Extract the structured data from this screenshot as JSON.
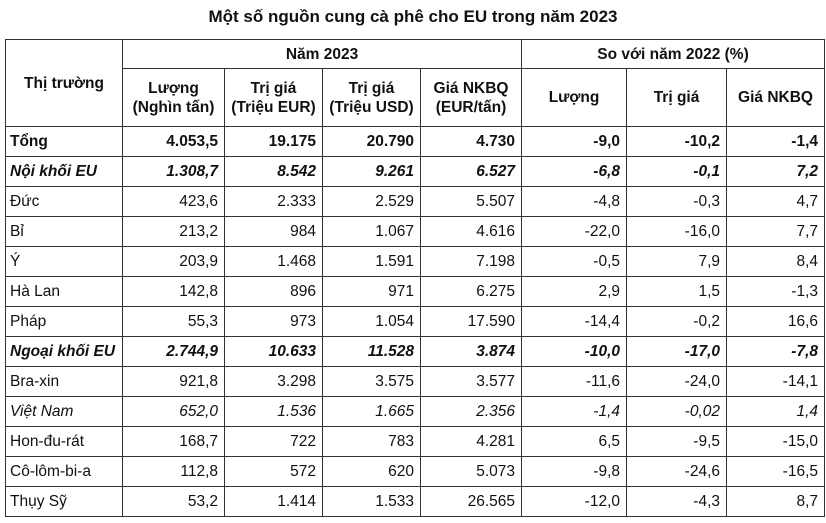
{
  "title": "Một số nguồn cung cà phê cho EU trong năm 2023",
  "header": {
    "market": "Thị trường",
    "group_2023": "Năm 2023",
    "group_vs2022": "So với năm 2022 (%)",
    "cols_2023": [
      [
        "Lượng",
        "(Nghìn tấn)"
      ],
      [
        "Trị giá",
        "(Triệu EUR)"
      ],
      [
        "Trị giá",
        "(Triệu USD)"
      ],
      [
        "Giá NKBQ",
        "(EUR/tấn)"
      ]
    ],
    "cols_vs": [
      "Lượng",
      "Trị giá",
      "Giá NKBQ"
    ]
  },
  "rows": [
    {
      "style": "bold",
      "cells": [
        "Tổng",
        "4.053,5",
        "19.175",
        "20.790",
        "4.730",
        "-9,0",
        "-10,2",
        "-1,4"
      ]
    },
    {
      "style": "bold italic",
      "cells": [
        "Nội khối EU",
        "1.308,7",
        "8.542",
        "9.261",
        "6.527",
        "-6,8",
        "-0,1",
        "7,2"
      ]
    },
    {
      "style": "",
      "cells": [
        "Đức",
        "423,6",
        "2.333",
        "2.529",
        "5.507",
        "-4,8",
        "-0,3",
        "4,7"
      ]
    },
    {
      "style": "",
      "cells": [
        "Bỉ",
        "213,2",
        "984",
        "1.067",
        "4.616",
        "-22,0",
        "-16,0",
        "7,7"
      ]
    },
    {
      "style": "",
      "cells": [
        "Ý",
        "203,9",
        "1.468",
        "1.591",
        "7.198",
        "-0,5",
        "7,9",
        "8,4"
      ]
    },
    {
      "style": "",
      "cells": [
        "Hà Lan",
        "142,8",
        "896",
        "971",
        "6.275",
        "2,9",
        "1,5",
        "-1,3"
      ]
    },
    {
      "style": "",
      "cells": [
        "Pháp",
        "55,3",
        "973",
        "1.054",
        "17.590",
        "-14,4",
        "-0,2",
        "16,6"
      ]
    },
    {
      "style": "bold italic",
      "cells": [
        "Ngoại khối EU",
        "2.744,9",
        "10.633",
        "11.528",
        "3.874",
        "-10,0",
        "-17,0",
        "-7,8"
      ]
    },
    {
      "style": "",
      "cells": [
        "Bra-xin",
        "921,8",
        "3.298",
        "3.575",
        "3.577",
        "-11,6",
        "-24,0",
        "-14,1"
      ]
    },
    {
      "style": "italic",
      "cells": [
        "Việt Nam",
        "652,0",
        "1.536",
        "1.665",
        "2.356",
        "-1,4",
        "-0,02",
        "1,4"
      ]
    },
    {
      "style": "",
      "cells": [
        "Hon-đu-rát",
        "168,7",
        "722",
        "783",
        "4.281",
        "6,5",
        "-9,5",
        "-15,0"
      ]
    },
    {
      "style": "",
      "cells": [
        "Cô-lôm-bi-a",
        "112,8",
        "572",
        "620",
        "5.073",
        "-9,8",
        "-24,6",
        "-16,5"
      ]
    },
    {
      "style": "",
      "cells": [
        "Thụy Sỹ",
        "53,2",
        "1.414",
        "1.533",
        "26.565",
        "-12,0",
        "-4,3",
        "8,7"
      ]
    }
  ]
}
